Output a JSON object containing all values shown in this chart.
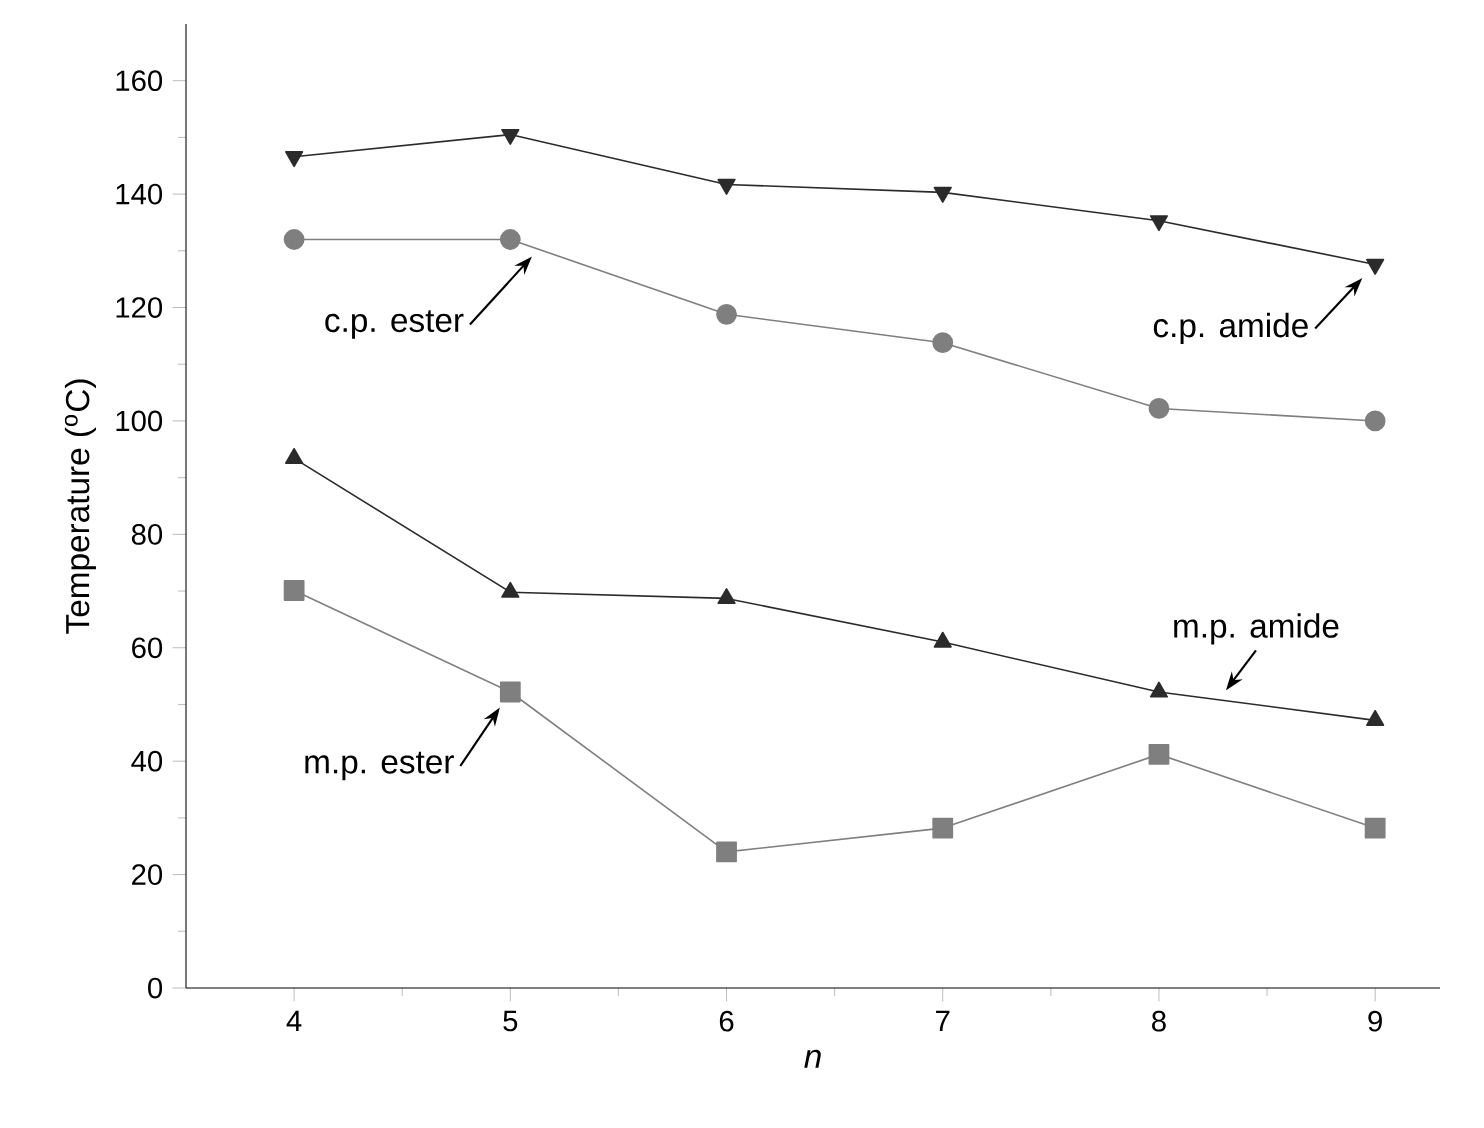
{
  "chart_data": {
    "type": "line",
    "xlabel": "n",
    "ylabel": "Temperature ($^{o}$C)",
    "x": [
      4,
      5,
      6,
      7,
      8,
      9
    ],
    "series": [
      {
        "color": "#2b2b2b",
        "marker": "triangle down",
        "values": [
          146.6,
          150.5,
          141.7,
          140.3,
          135.3,
          127.6
        ]
      },
      {
        "color": "#7f7f7f",
        "marker": "circle",
        "values": [
          132,
          132,
          118.8,
          113.8,
          102.2,
          100
        ]
      },
      {
        "color": "#2b2b2b",
        "marker": "triangle",
        "values": [
          93.4,
          69.8,
          68.7,
          61,
          52.2,
          47.2
        ]
      },
      {
        "color": "#7f7f7f",
        "marker": "square",
        "values": [
          70.1,
          52.2,
          24,
          28.2,
          41.2,
          28.2
        ]
      }
    ],
    "xlim": [
      3.5,
      9.3
    ],
    "ylim": [
      0,
      170
    ],
    "xticks": [
      4,
      5,
      6,
      7,
      8,
      9
    ],
    "yticks": [
      0,
      20,
      40,
      60,
      80,
      100,
      120,
      140,
      160
    ],
    "grid": false,
    "annotations": [
      {
        "text": "c.p. ester",
        "x": 5.1,
        "y": 129
      },
      {
        "text": "c.p. amide",
        "x": 9,
        "y": 127.6
      },
      {
        "text": "m.p. amide",
        "x": 8.31,
        "y": 52.5
      },
      {
        "text": "m.p. ester",
        "x": 5,
        "y": 52.2
      }
    ]
  }
}
